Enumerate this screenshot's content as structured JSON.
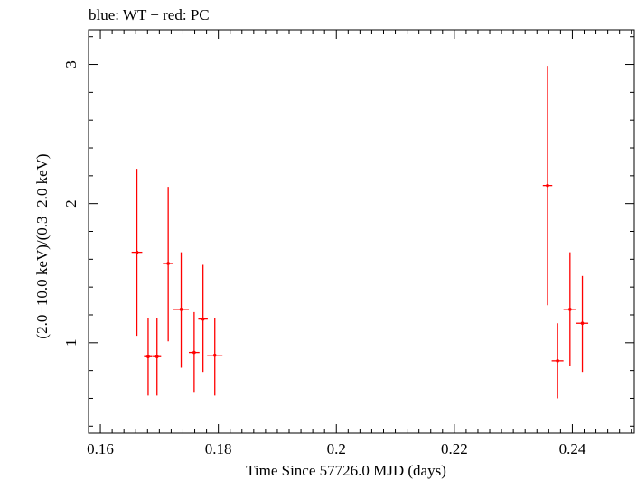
{
  "chart_data": {
    "type": "scatter",
    "title": "blue: WT − red: PC",
    "xlabel": "Time Since 57726.0 MJD (days)",
    "ylabel": "(2.0−10.0 keV)/(0.3−2.0 keV)",
    "xlim": [
      0.158,
      0.2505
    ],
    "ylim": [
      0.35,
      3.25
    ],
    "x_ticks": [
      0.16,
      0.18,
      0.2,
      0.22,
      0.24
    ],
    "x_tick_labels": [
      "0.16",
      "0.18",
      "0.2",
      "0.22",
      "0.24"
    ],
    "x_minor_step": 0.002,
    "y_ticks": [
      1,
      2,
      3
    ],
    "y_tick_labels": [
      "1",
      "2",
      "3"
    ],
    "y_minor_step": 0.2,
    "series": [
      {
        "name": "PC",
        "color": "#ff0000",
        "points": [
          {
            "x": 0.1662,
            "xerr": 0.0009,
            "y": 1.65,
            "ylo": 1.05,
            "yhi": 2.25
          },
          {
            "x": 0.1681,
            "xerr": 0.0007,
            "y": 0.9,
            "ylo": 0.62,
            "yhi": 1.18
          },
          {
            "x": 0.1696,
            "xerr": 0.0007,
            "y": 0.9,
            "ylo": 0.62,
            "yhi": 1.18
          },
          {
            "x": 0.1715,
            "xerr": 0.0009,
            "y": 1.57,
            "ylo": 1.01,
            "yhi": 2.12
          },
          {
            "x": 0.1737,
            "xerr": 0.0013,
            "y": 1.24,
            "ylo": 0.82,
            "yhi": 1.65
          },
          {
            "x": 0.1759,
            "xerr": 0.0009,
            "y": 0.93,
            "ylo": 0.64,
            "yhi": 1.22
          },
          {
            "x": 0.1774,
            "xerr": 0.0008,
            "y": 1.17,
            "ylo": 0.79,
            "yhi": 1.56
          },
          {
            "x": 0.1794,
            "xerr": 0.0013,
            "y": 0.91,
            "ylo": 0.62,
            "yhi": 1.18
          },
          {
            "x": 0.2358,
            "xerr": 0.0008,
            "y": 2.13,
            "ylo": 1.27,
            "yhi": 2.99
          },
          {
            "x": 0.2375,
            "xerr": 0.001,
            "y": 0.87,
            "ylo": 0.6,
            "yhi": 1.14
          },
          {
            "x": 0.2396,
            "xerr": 0.0011,
            "y": 1.24,
            "ylo": 0.83,
            "yhi": 1.65
          },
          {
            "x": 0.2417,
            "xerr": 0.001,
            "y": 1.14,
            "ylo": 0.79,
            "yhi": 1.48
          }
        ]
      }
    ]
  }
}
